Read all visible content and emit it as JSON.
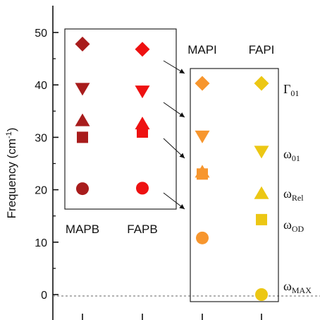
{
  "chart_data": {
    "type": "scatter",
    "title": "",
    "xlabel": "",
    "ylabel": "Frequency (cm",
    "ylabel_sup": "-1",
    "ylabel_end": ")",
    "ylim": [
      -4,
      54
    ],
    "yticks": [
      0,
      10,
      20,
      30,
      40,
      50
    ],
    "ytick_labels": [
      "0",
      "10",
      "20",
      "30",
      "40",
      "50"
    ],
    "groups": [
      {
        "label": "MAPB",
        "color": "#a81c1c",
        "values": {
          "diamond": 47.8,
          "triangle_down": 39.3,
          "triangle_up": 33.2,
          "square": 30.0,
          "circle": 20.2
        }
      },
      {
        "label": "FAPB",
        "color": "#ee1111",
        "values": {
          "diamond": 46.8,
          "triangle_down": 38.8,
          "triangle_up": 32.6,
          "square": 31.0,
          "circle": 20.3
        }
      },
      {
        "label": "MAPI",
        "color": "#f7962e",
        "values": {
          "diamond": 40.3,
          "triangle_down": 30.2,
          "triangle_up": 23.4,
          "square": 23.0,
          "circle": 10.8
        }
      },
      {
        "label": "FAPI",
        "color": "#ecc714",
        "values": {
          "diamond": 40.3,
          "triangle_down": 27.3,
          "triangle_up": 19.3,
          "square": 14.3,
          "circle": 0.0
        }
      }
    ],
    "parameters": [
      {
        "symbol": "Γ",
        "sub": "01",
        "marker": "diamond"
      },
      {
        "symbol": "ω",
        "sub": "01",
        "marker": "triangle_down"
      },
      {
        "symbol": "ω",
        "sub": "Rel",
        "marker": "triangle_up"
      },
      {
        "symbol": "ω",
        "sub": "OD",
        "marker": "square"
      },
      {
        "symbol": "ω",
        "sub": "MAX",
        "marker": "circle"
      }
    ],
    "reference_line": 0,
    "grid": false,
    "legend": "none"
  }
}
